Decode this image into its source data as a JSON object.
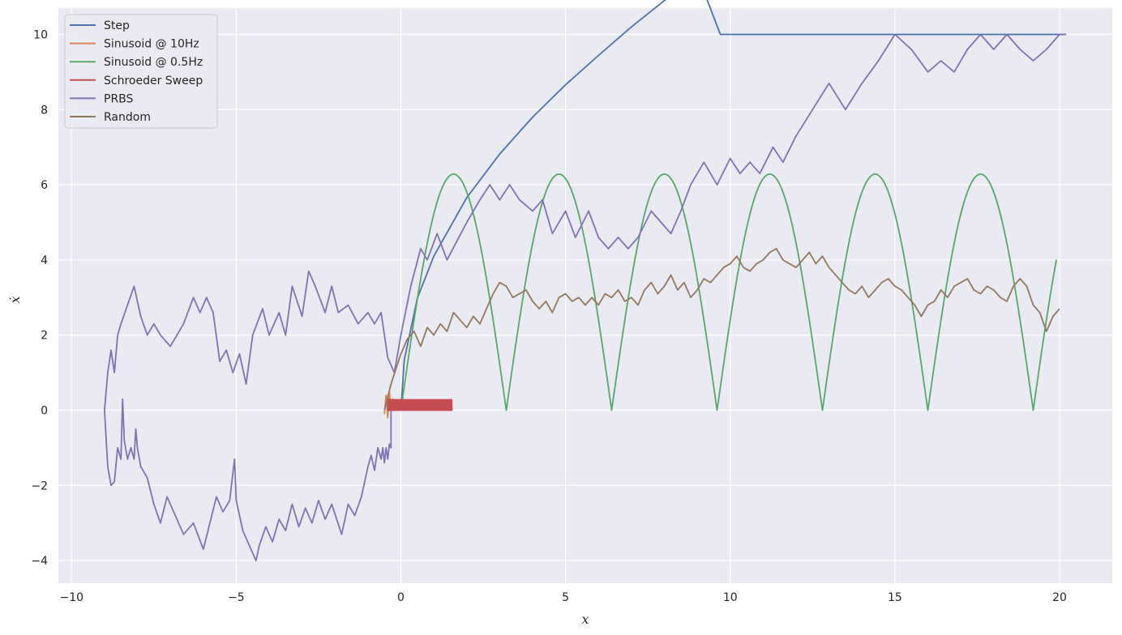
{
  "chart_data": {
    "type": "line",
    "title": "",
    "xlabel": "x",
    "ylabel": "ẋ",
    "xlim": [
      -10.4,
      21.6
    ],
    "ylim": [
      -4.6,
      10.7
    ],
    "xticks": [
      -10,
      -5,
      0,
      5,
      10,
      15,
      20
    ],
    "xtick_labels": [
      "−10",
      "−5",
      "0",
      "5",
      "10",
      "15",
      "20"
    ],
    "yticks": [
      -4,
      -2,
      0,
      2,
      4,
      6,
      8,
      10
    ],
    "ytick_labels": [
      "−4",
      "−2",
      "0",
      "2",
      "4",
      "6",
      "8",
      "10"
    ],
    "grid": true,
    "legend_position": "top-left",
    "colors": {
      "background": "#eaeaf2",
      "grid": "#ffffff",
      "text": "#262626"
    },
    "series": [
      {
        "name": "Step",
        "color": "#4c72b0",
        "points": [
          [
            0,
            0
          ],
          [
            0.1,
            1.33
          ],
          [
            0.5,
            2.98
          ],
          [
            1,
            4.1
          ],
          [
            2,
            5.66
          ],
          [
            3,
            6.82
          ],
          [
            4,
            7.8
          ],
          [
            5,
            8.66
          ],
          [
            6,
            9.44
          ],
          [
            7,
            10.2
          ],
          [
            8,
            10.9
          ],
          [
            9,
            11.6
          ],
          [
            9.7,
            10.0
          ],
          [
            15,
            10.0
          ],
          [
            20.2,
            10.0
          ]
        ]
      },
      {
        "name": "Sinusoid @ 10Hz",
        "color": "#dd8452",
        "points": [
          [
            -0.5,
            -0.1
          ],
          [
            -0.45,
            0.4
          ],
          [
            -0.4,
            -0.2
          ],
          [
            -0.35,
            0.5
          ],
          [
            -0.3,
            0.0
          ],
          [
            -0.25,
            0.3
          ],
          [
            -0.2,
            0.1
          ]
        ]
      },
      {
        "name": "Sinusoid @ 0.5Hz",
        "color": "#55a868",
        "points": []
      },
      {
        "name": "Schroeder Sweep",
        "color": "#c44e52",
        "points": []
      },
      {
        "name": "PRBS",
        "color": "#8172b3",
        "points": [
          [
            -0.3,
            0.0
          ],
          [
            -0.3,
            -1.0
          ],
          [
            -0.35,
            -0.9
          ],
          [
            -0.4,
            -1.3
          ],
          [
            -0.45,
            -1.0
          ],
          [
            -0.5,
            -1.4
          ],
          [
            -0.55,
            -1.0
          ],
          [
            -0.6,
            -1.3
          ],
          [
            -0.7,
            -1.0
          ],
          [
            -0.8,
            -1.6
          ],
          [
            -0.9,
            -1.2
          ],
          [
            -1.0,
            -1.5
          ],
          [
            -1.2,
            -2.3
          ],
          [
            -1.4,
            -2.8
          ],
          [
            -1.6,
            -2.5
          ],
          [
            -1.8,
            -3.3
          ],
          [
            -2.1,
            -2.5
          ],
          [
            -2.3,
            -2.9
          ],
          [
            -2.5,
            -2.4
          ],
          [
            -2.7,
            -3.0
          ],
          [
            -2.9,
            -2.6
          ],
          [
            -3.1,
            -3.1
          ],
          [
            -3.3,
            -2.5
          ],
          [
            -3.5,
            -3.2
          ],
          [
            -3.7,
            -2.9
          ],
          [
            -3.9,
            -3.5
          ],
          [
            -4.1,
            -3.1
          ],
          [
            -4.3,
            -3.6
          ],
          [
            -4.4,
            -4.0
          ],
          [
            -4.6,
            -3.6
          ],
          [
            -4.8,
            -3.2
          ],
          [
            -5.0,
            -2.4
          ],
          [
            -5.05,
            -1.3
          ],
          [
            -5.2,
            -2.4
          ],
          [
            -5.4,
            -2.7
          ],
          [
            -5.6,
            -2.3
          ],
          [
            -5.8,
            -3.0
          ],
          [
            -6.0,
            -3.7
          ],
          [
            -6.3,
            -3.0
          ],
          [
            -6.6,
            -3.3
          ],
          [
            -6.9,
            -2.7
          ],
          [
            -7.1,
            -2.3
          ],
          [
            -7.3,
            -3.0
          ],
          [
            -7.5,
            -2.5
          ],
          [
            -7.7,
            -1.8
          ],
          [
            -7.9,
            -1.5
          ],
          [
            -8.0,
            -1.0
          ],
          [
            -8.05,
            -0.5
          ],
          [
            -8.1,
            -1.3
          ],
          [
            -8.2,
            -1.0
          ],
          [
            -8.3,
            -1.3
          ],
          [
            -8.4,
            -0.8
          ],
          [
            -8.45,
            0.3
          ],
          [
            -8.5,
            -1.3
          ],
          [
            -8.6,
            -1.0
          ],
          [
            -8.7,
            -1.9
          ],
          [
            -8.8,
            -2.0
          ],
          [
            -8.9,
            -1.5
          ],
          [
            -9.0,
            0.0
          ],
          [
            -8.9,
            1.0
          ],
          [
            -8.8,
            1.6
          ],
          [
            -8.7,
            1.0
          ],
          [
            -8.6,
            2.0
          ],
          [
            -8.5,
            2.3
          ],
          [
            -8.3,
            2.8
          ],
          [
            -8.1,
            3.3
          ],
          [
            -7.9,
            2.5
          ],
          [
            -7.7,
            2.0
          ],
          [
            -7.5,
            2.3
          ],
          [
            -7.3,
            2.0
          ],
          [
            -7.0,
            1.7
          ],
          [
            -6.8,
            2.0
          ],
          [
            -6.6,
            2.3
          ],
          [
            -6.3,
            3.0
          ],
          [
            -6.1,
            2.6
          ],
          [
            -5.9,
            3.0
          ],
          [
            -5.7,
            2.6
          ],
          [
            -5.5,
            1.3
          ],
          [
            -5.3,
            1.6
          ],
          [
            -5.1,
            1.0
          ],
          [
            -4.9,
            1.5
          ],
          [
            -4.7,
            0.7
          ],
          [
            -4.5,
            2.0
          ],
          [
            -4.2,
            2.7
          ],
          [
            -4.0,
            2.0
          ],
          [
            -3.7,
            2.6
          ],
          [
            -3.5,
            2.0
          ],
          [
            -3.3,
            3.3
          ],
          [
            -3.0,
            2.5
          ],
          [
            -2.8,
            3.7
          ],
          [
            -2.6,
            3.3
          ],
          [
            -2.3,
            2.6
          ],
          [
            -2.1,
            3.3
          ],
          [
            -1.9,
            2.6
          ],
          [
            -1.6,
            2.8
          ],
          [
            -1.3,
            2.3
          ],
          [
            -1.0,
            2.6
          ],
          [
            -0.8,
            2.3
          ],
          [
            -0.6,
            2.6
          ],
          [
            -0.4,
            1.4
          ],
          [
            -0.2,
            1.0
          ],
          [
            0,
            2.0
          ],
          [
            0.3,
            3.3
          ],
          [
            0.6,
            4.3
          ],
          [
            0.8,
            4.0
          ],
          [
            1.1,
            4.7
          ],
          [
            1.4,
            4.0
          ],
          [
            1.7,
            4.5
          ],
          [
            2.0,
            5.0
          ],
          [
            2.4,
            5.6
          ],
          [
            2.7,
            6.0
          ],
          [
            3.0,
            5.6
          ],
          [
            3.3,
            6.0
          ],
          [
            3.6,
            5.6
          ],
          [
            4.0,
            5.3
          ],
          [
            4.3,
            5.6
          ],
          [
            4.6,
            4.7
          ],
          [
            5.0,
            5.3
          ],
          [
            5.3,
            4.6
          ],
          [
            5.7,
            5.3
          ],
          [
            6.0,
            4.6
          ],
          [
            6.3,
            4.3
          ],
          [
            6.6,
            4.6
          ],
          [
            6.9,
            4.3
          ],
          [
            7.2,
            4.6
          ],
          [
            7.6,
            5.3
          ],
          [
            7.9,
            5.0
          ],
          [
            8.2,
            4.7
          ],
          [
            8.5,
            5.3
          ],
          [
            8.8,
            6.0
          ],
          [
            9.2,
            6.6
          ],
          [
            9.6,
            6.0
          ],
          [
            10.0,
            6.7
          ],
          [
            10.3,
            6.3
          ],
          [
            10.6,
            6.6
          ],
          [
            10.9,
            6.3
          ],
          [
            11.3,
            7.0
          ],
          [
            11.6,
            6.6
          ],
          [
            12.0,
            7.3
          ],
          [
            12.5,
            8.0
          ],
          [
            13.0,
            8.7
          ],
          [
            13.5,
            8.0
          ],
          [
            14.0,
            8.7
          ],
          [
            14.5,
            9.3
          ],
          [
            15.0,
            10.0
          ],
          [
            15.5,
            9.6
          ],
          [
            16.0,
            9.0
          ],
          [
            16.4,
            9.3
          ],
          [
            16.8,
            9.0
          ],
          [
            17.2,
            9.6
          ],
          [
            17.6,
            10.0
          ],
          [
            18.0,
            9.6
          ],
          [
            18.4,
            10.0
          ],
          [
            18.8,
            9.6
          ],
          [
            19.2,
            9.3
          ],
          [
            19.6,
            9.6
          ],
          [
            20.0,
            10.0
          ],
          [
            20.2,
            10.0
          ]
        ]
      },
      {
        "name": "Random",
        "color": "#937860",
        "points": [
          [
            -0.5,
            0.0
          ],
          [
            -0.3,
            0.7
          ],
          [
            0,
            1.5
          ],
          [
            0.2,
            1.9
          ],
          [
            0.4,
            2.1
          ],
          [
            0.6,
            1.7
          ],
          [
            0.8,
            2.2
          ],
          [
            1.0,
            2.0
          ],
          [
            1.2,
            2.3
          ],
          [
            1.4,
            2.1
          ],
          [
            1.6,
            2.6
          ],
          [
            1.8,
            2.4
          ],
          [
            2.0,
            2.2
          ],
          [
            2.2,
            2.5
          ],
          [
            2.4,
            2.3
          ],
          [
            2.6,
            2.7
          ],
          [
            2.8,
            3.1
          ],
          [
            3.0,
            3.4
          ],
          [
            3.2,
            3.3
          ],
          [
            3.4,
            3.0
          ],
          [
            3.6,
            3.1
          ],
          [
            3.8,
            3.2
          ],
          [
            4.0,
            2.9
          ],
          [
            4.2,
            2.7
          ],
          [
            4.4,
            2.9
          ],
          [
            4.6,
            2.6
          ],
          [
            4.8,
            3.0
          ],
          [
            5.0,
            3.1
          ],
          [
            5.2,
            2.9
          ],
          [
            5.4,
            3.0
          ],
          [
            5.6,
            2.8
          ],
          [
            5.8,
            3.0
          ],
          [
            6.0,
            2.8
          ],
          [
            6.2,
            3.1
          ],
          [
            6.4,
            3.0
          ],
          [
            6.6,
            3.2
          ],
          [
            6.8,
            2.9
          ],
          [
            7.0,
            3.0
          ],
          [
            7.2,
            2.8
          ],
          [
            7.4,
            3.2
          ],
          [
            7.6,
            3.4
          ],
          [
            7.8,
            3.1
          ],
          [
            8.0,
            3.3
          ],
          [
            8.2,
            3.6
          ],
          [
            8.4,
            3.2
          ],
          [
            8.6,
            3.4
          ],
          [
            8.8,
            3.0
          ],
          [
            9.0,
            3.2
          ],
          [
            9.2,
            3.5
          ],
          [
            9.4,
            3.4
          ],
          [
            9.6,
            3.6
          ],
          [
            9.8,
            3.8
          ],
          [
            10.0,
            3.9
          ],
          [
            10.2,
            4.1
          ],
          [
            10.4,
            3.8
          ],
          [
            10.6,
            3.7
          ],
          [
            10.8,
            3.9
          ],
          [
            11.0,
            4.0
          ],
          [
            11.2,
            4.2
          ],
          [
            11.4,
            4.3
          ],
          [
            11.6,
            4.0
          ],
          [
            11.8,
            3.9
          ],
          [
            12.0,
            3.8
          ],
          [
            12.2,
            4.0
          ],
          [
            12.4,
            4.2
          ],
          [
            12.6,
            3.9
          ],
          [
            12.8,
            4.1
          ],
          [
            13.0,
            3.8
          ],
          [
            13.2,
            3.6
          ],
          [
            13.4,
            3.4
          ],
          [
            13.6,
            3.2
          ],
          [
            13.8,
            3.1
          ],
          [
            14.0,
            3.3
          ],
          [
            14.2,
            3.0
          ],
          [
            14.4,
            3.2
          ],
          [
            14.6,
            3.4
          ],
          [
            14.8,
            3.5
          ],
          [
            15.0,
            3.3
          ],
          [
            15.2,
            3.2
          ],
          [
            15.4,
            3.0
          ],
          [
            15.6,
            2.8
          ],
          [
            15.8,
            2.5
          ],
          [
            16.0,
            2.8
          ],
          [
            16.2,
            2.9
          ],
          [
            16.4,
            3.2
          ],
          [
            16.6,
            3.0
          ],
          [
            16.8,
            3.3
          ],
          [
            17.0,
            3.4
          ],
          [
            17.2,
            3.5
          ],
          [
            17.4,
            3.2
          ],
          [
            17.6,
            3.1
          ],
          [
            17.8,
            3.3
          ],
          [
            18.0,
            3.2
          ],
          [
            18.2,
            3.0
          ],
          [
            18.4,
            2.9
          ],
          [
            18.6,
            3.3
          ],
          [
            18.8,
            3.5
          ],
          [
            19.0,
            3.3
          ],
          [
            19.2,
            2.8
          ],
          [
            19.4,
            2.6
          ],
          [
            19.6,
            2.1
          ],
          [
            19.8,
            2.5
          ],
          [
            20.0,
            2.7
          ]
        ]
      }
    ]
  }
}
